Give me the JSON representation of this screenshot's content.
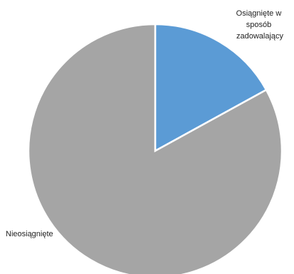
{
  "chart_data": {
    "type": "pie",
    "title": "",
    "start_angle_deg": 0,
    "direction": "clockwise",
    "slices": [
      {
        "label_lines": [
          "Osiągnięte w",
          "sposób",
          "zadowalający"
        ],
        "label": "Osiągnięte w sposób zadowalający",
        "value": 17,
        "color": "#5b9bd5"
      },
      {
        "label_lines": [
          "Nieosiągnięte"
        ],
        "label": "Nieosiągnięte",
        "value": 83,
        "color": "#a5a5a5"
      }
    ]
  }
}
